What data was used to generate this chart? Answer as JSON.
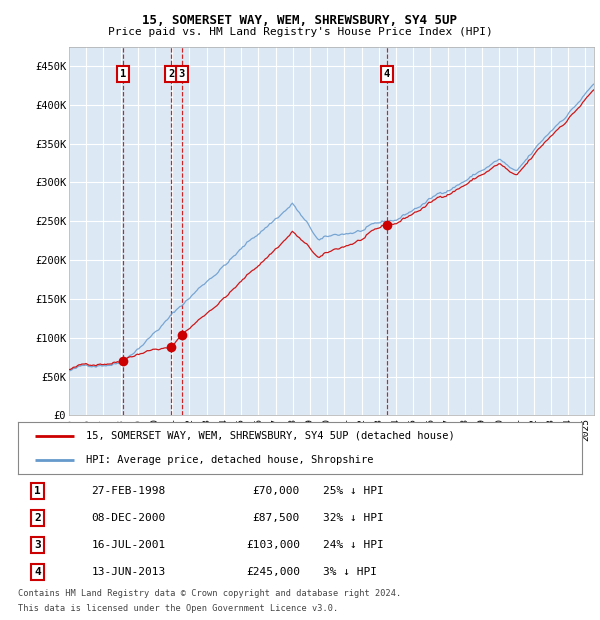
{
  "title": "15, SOMERSET WAY, WEM, SHREWSBURY, SY4 5UP",
  "subtitle": "Price paid vs. HM Land Registry's House Price Index (HPI)",
  "ylabel_ticks": [
    "£0",
    "£50K",
    "£100K",
    "£150K",
    "£200K",
    "£250K",
    "£300K",
    "£350K",
    "£400K",
    "£450K"
  ],
  "ytick_values": [
    0,
    50000,
    100000,
    150000,
    200000,
    250000,
    300000,
    350000,
    400000,
    450000
  ],
  "ylim": [
    0,
    475000
  ],
  "xlim_start": 1995.0,
  "xlim_end": 2025.5,
  "background_color": "#dce9f5",
  "grid_color": "#ffffff",
  "sale_color": "#cc0000",
  "hpi_color": "#6699cc",
  "transactions": [
    {
      "num": 1,
      "date_str": "27-FEB-1998",
      "year": 1998.15,
      "price": 70000,
      "pct": "25%"
    },
    {
      "num": 2,
      "date_str": "08-DEC-2000",
      "year": 2000.93,
      "price": 87500,
      "pct": "32%"
    },
    {
      "num": 3,
      "date_str": "16-JUL-2001",
      "year": 2001.54,
      "price": 103000,
      "pct": "24%"
    },
    {
      "num": 4,
      "date_str": "13-JUN-2013",
      "year": 2013.45,
      "price": 245000,
      "pct": "3%"
    }
  ],
  "legend_sale_label": "15, SOMERSET WAY, WEM, SHREWSBURY, SY4 5UP (detached house)",
  "legend_hpi_label": "HPI: Average price, detached house, Shropshire",
  "footer1": "Contains HM Land Registry data © Crown copyright and database right 2024.",
  "footer2": "This data is licensed under the Open Government Licence v3.0."
}
